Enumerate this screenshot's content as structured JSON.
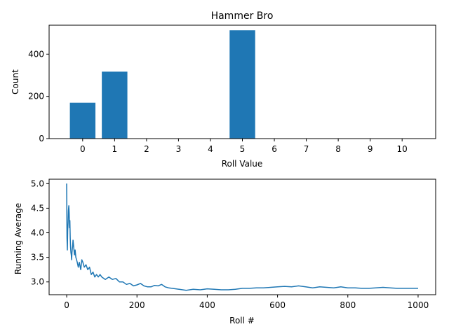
{
  "chart_data": [
    {
      "type": "bar",
      "title": "Hammer Bro",
      "xlabel": "Roll Value",
      "ylabel": "Count",
      "categories": [
        "0",
        "1",
        "2",
        "3",
        "4",
        "5",
        "6",
        "7",
        "8",
        "9",
        "10"
      ],
      "values": [
        170,
        317,
        0,
        0,
        0,
        513,
        0,
        0,
        0,
        0,
        0
      ],
      "yticks": [
        0,
        200,
        400
      ],
      "ylim": [
        0,
        537
      ],
      "color": "#1f77b4",
      "grid": false
    },
    {
      "type": "line",
      "title": "",
      "xlabel": "Roll #",
      "ylabel": "Running Average",
      "xticks": [
        0,
        200,
        400,
        600,
        800,
        1000
      ],
      "yticks": [
        3.0,
        3.5,
        4.0,
        4.5,
        5.0
      ],
      "ytick_labels": [
        "3.0",
        "3.5",
        "4.0",
        "4.5",
        "5.0"
      ],
      "xlim": [
        -50,
        1050
      ],
      "ylim": [
        2.74,
        5.09
      ],
      "color": "#1f77b4",
      "grid": false,
      "series": [
        {
          "x": [
            0,
            1,
            2,
            3,
            4,
            5,
            6,
            7,
            8,
            9,
            10,
            11,
            12,
            13,
            14,
            15,
            17,
            18,
            20,
            22,
            24,
            26,
            28,
            30,
            33,
            36,
            40,
            43,
            46,
            50,
            55,
            60,
            65,
            70,
            75,
            80,
            85,
            90,
            95,
            100,
            110,
            120,
            130,
            140,
            150,
            160,
            170,
            180,
            190,
            200,
            210,
            220,
            230,
            240,
            250,
            260,
            270,
            280,
            290,
            300,
            320,
            340,
            360,
            380,
            400,
            420,
            440,
            460,
            480,
            500,
            520,
            540,
            560,
            580,
            600,
            620,
            640,
            660,
            680,
            700,
            720,
            740,
            760,
            780,
            800,
            820,
            840,
            860,
            880,
            900,
            920,
            940,
            960,
            980,
            1000
          ],
          "y": [
            5.0,
            3.9,
            3.65,
            4.05,
            4.2,
            4.45,
            4.55,
            4.4,
            4.1,
            4.25,
            3.9,
            3.7,
            3.6,
            3.55,
            3.45,
            3.6,
            3.75,
            3.85,
            3.7,
            3.55,
            3.65,
            3.5,
            3.45,
            3.4,
            3.3,
            3.4,
            3.25,
            3.45,
            3.4,
            3.3,
            3.35,
            3.25,
            3.3,
            3.15,
            3.2,
            3.1,
            3.15,
            3.1,
            3.15,
            3.1,
            3.05,
            3.1,
            3.05,
            3.07,
            3.0,
            3.0,
            2.95,
            2.97,
            2.92,
            2.94,
            2.97,
            2.92,
            2.9,
            2.9,
            2.93,
            2.92,
            2.95,
            2.9,
            2.88,
            2.87,
            2.85,
            2.83,
            2.85,
            2.84,
            2.86,
            2.85,
            2.84,
            2.84,
            2.85,
            2.87,
            2.87,
            2.88,
            2.88,
            2.89,
            2.9,
            2.91,
            2.9,
            2.92,
            2.9,
            2.88,
            2.9,
            2.89,
            2.88,
            2.9,
            2.88,
            2.88,
            2.87,
            2.87,
            2.88,
            2.89,
            2.88,
            2.87,
            2.87,
            2.87,
            2.87
          ]
        }
      ]
    }
  ]
}
